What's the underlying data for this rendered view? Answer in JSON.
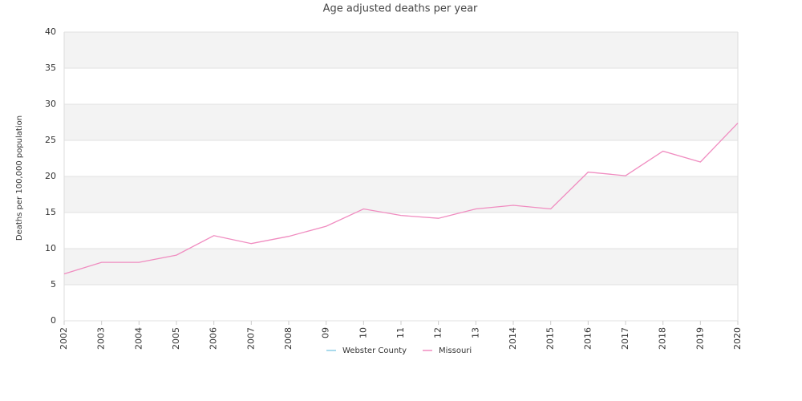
{
  "chart_data": {
    "type": "line",
    "title": "Age adjusted deaths per year",
    "y_label": "Deaths per 100,000 population",
    "categories": [
      "2002",
      "2003",
      "2004",
      "2005",
      "2006",
      "2007",
      "2008",
      "09",
      "10",
      "11",
      "12",
      "13",
      "2014",
      "2015",
      "2016",
      "2017",
      "2018",
      "2019",
      "2020"
    ],
    "series": [
      {
        "name": "Webster County",
        "color": "#8ccde6",
        "values": [
          null,
          null,
          null,
          null,
          null,
          null,
          null,
          null,
          null,
          null,
          null,
          null,
          null,
          null,
          null,
          null,
          null,
          null,
          null
        ]
      },
      {
        "name": "Missouri",
        "color": "#f08cc0",
        "values": [
          6.5,
          8.1,
          8.1,
          9.1,
          11.8,
          10.7,
          11.7,
          13.1,
          15.5,
          14.6,
          14.2,
          15.5,
          16.0,
          15.5,
          20.6,
          20.1,
          23.5,
          22.0,
          27.4
        ]
      }
    ],
    "ylim": [
      0,
      40
    ],
    "yticks": [
      0,
      5,
      10,
      15,
      20,
      25,
      30,
      35,
      40
    ],
    "grid": true,
    "legend": "bottom"
  }
}
